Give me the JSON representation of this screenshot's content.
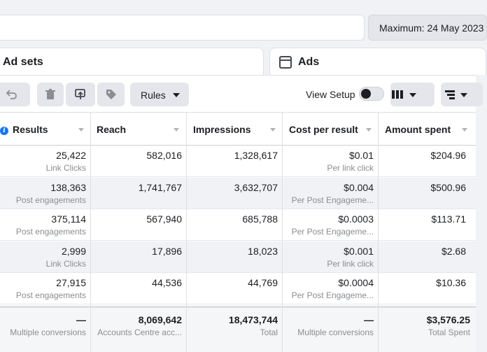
{
  "header": {
    "search_placeholder": "",
    "date_label": "Maximum: 24 May 2023"
  },
  "tabs": {
    "ad_sets": "Ad sets",
    "ads": "Ads"
  },
  "toolbar": {
    "rules_label": "Rules",
    "view_setup_label": "View Setup",
    "view_setup_on": false
  },
  "columns": [
    "Results",
    "Reach",
    "Impressions",
    "Cost per result",
    "Amount spent"
  ],
  "rows": [
    {
      "results": "25,422",
      "results_sub": "Link Clicks",
      "reach": "582,016",
      "impressions": "1,328,617",
      "cpr": "$0.01",
      "cpr_sub": "Per link click",
      "spent": "$204.96"
    },
    {
      "results": "138,363",
      "results_sub": "Post engagements",
      "reach": "1,741,767",
      "impressions": "3,632,707",
      "cpr": "$0.004",
      "cpr_sub": "Per Post Engageme...",
      "spent": "$500.96"
    },
    {
      "results": "375,114",
      "results_sub": "Post engagements",
      "reach": "567,940",
      "impressions": "685,788",
      "cpr": "$0.0003",
      "cpr_sub": "Per Post Engageme...",
      "spent": "$113.71"
    },
    {
      "results": "2,999",
      "results_sub": "Link Clicks",
      "reach": "17,896",
      "impressions": "18,023",
      "cpr": "$0.001",
      "cpr_sub": "Per link click",
      "spent": "$2.68"
    },
    {
      "results": "27,915",
      "results_sub": "Post engagements",
      "reach": "44,536",
      "impressions": "44,769",
      "cpr": "$0.0004",
      "cpr_sub": "Per Post Engageme...",
      "spent": "$10.36"
    }
  ],
  "totals": {
    "results": "—",
    "results_sub": "Multiple conversions",
    "reach": "8,069,642",
    "reach_sub": "Accounts Centre acc...",
    "impressions": "18,473,744",
    "impressions_sub": "Total",
    "cpr": "—",
    "cpr_sub": "Multiple conversions",
    "spent": "$3,576.25",
    "spent_sub": "Total Spent"
  },
  "colors": {
    "accent": "#1877f2",
    "toolbar_button": "#e4e6eb",
    "row_alt": "#f0f2f5"
  },
  "icons": [
    "undo-icon",
    "trash-icon",
    "duplicate-icon",
    "tag-icon",
    "columns-icon",
    "breakdown-icon",
    "info-icon",
    "ads-icon"
  ]
}
